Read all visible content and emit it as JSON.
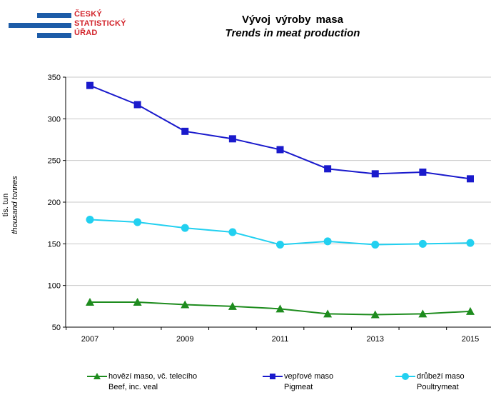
{
  "logo": {
    "line1": "ČESKÝ",
    "line2": "STATISTICKÝ",
    "line3": "ÚŘAD"
  },
  "colors": {
    "beef": "#1e8c1e",
    "pig": "#1a1acc",
    "poultry": "#22d0f0",
    "grid": "#c8c8c8",
    "logo_blue": "#1d5ca8",
    "logo_red": "#d2232a"
  },
  "chart_data": {
    "type": "line",
    "title": "Vývoj výroby masa",
    "subtitle": "Trends in meat production",
    "ylabel": "tis. tun",
    "ylabel2": "thousand tonnes",
    "xlabel": "",
    "x": [
      2007,
      2008,
      2009,
      2010,
      2011,
      2012,
      2013,
      2014,
      2015
    ],
    "x_tick_labels": [
      "2007",
      "2009",
      "2011",
      "2013",
      "2015"
    ],
    "ylim": [
      50,
      350
    ],
    "y_ticks": [
      50,
      100,
      150,
      200,
      250,
      300,
      350
    ],
    "grid": "horizontal",
    "legend_position": "bottom",
    "series": [
      {
        "key": "beef",
        "name": "hovězí maso, vč. telecího",
        "name_en": "Beef, inc. veal",
        "marker": "triangle",
        "values": [
          80,
          80,
          77,
          75,
          72,
          66,
          65,
          66,
          69
        ]
      },
      {
        "key": "pig",
        "name": "vepřové maso",
        "name_en": "Pigmeat",
        "marker": "square",
        "values": [
          340,
          317,
          285,
          276,
          263,
          240,
          234,
          236,
          228
        ]
      },
      {
        "key": "poultry",
        "name": "drůbeží maso",
        "name_en": "Poultrymeat",
        "marker": "circle",
        "values": [
          179,
          176,
          169,
          164,
          149,
          153,
          149,
          150,
          151
        ]
      }
    ]
  }
}
